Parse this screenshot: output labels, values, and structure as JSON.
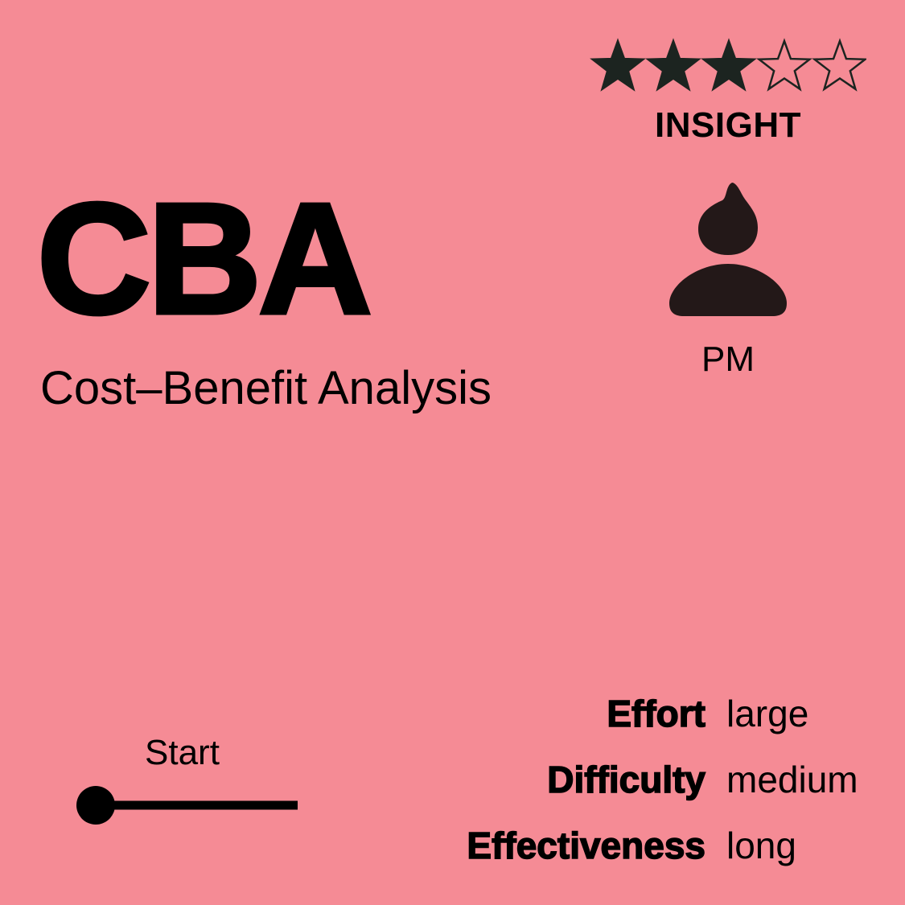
{
  "card": {
    "background_color": "#f58b95",
    "text_color": "#000000",
    "icon_color": "#231818"
  },
  "rating": {
    "value": 3,
    "max": 5,
    "filled_icon": "star-filled-icon",
    "empty_icon": "star-outline-icon"
  },
  "category": "INSIGHT",
  "title": {
    "abbreviation": "CBA",
    "full_name": "Cost–Benefit Analysis"
  },
  "role": {
    "icon": "person-icon",
    "label": "PM"
  },
  "stage": {
    "label": "Start",
    "position": 0
  },
  "metrics": [
    {
      "label": "Effort",
      "value": "large"
    },
    {
      "label": "Difficulty",
      "value": "medium"
    },
    {
      "label": "Effectiveness",
      "value": "long"
    }
  ]
}
